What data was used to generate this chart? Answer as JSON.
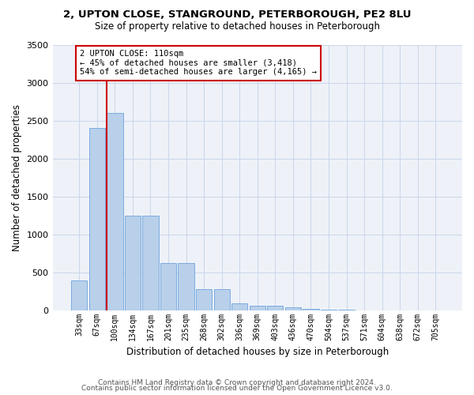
{
  "title1": "2, UPTON CLOSE, STANGROUND, PETERBOROUGH, PE2 8LU",
  "title2": "Size of property relative to detached houses in Peterborough",
  "xlabel": "Distribution of detached houses by size in Peterborough",
  "ylabel": "Number of detached properties",
  "bin_labels": [
    "33sqm",
    "67sqm",
    "100sqm",
    "134sqm",
    "167sqm",
    "201sqm",
    "235sqm",
    "268sqm",
    "302sqm",
    "336sqm",
    "369sqm",
    "403sqm",
    "436sqm",
    "470sqm",
    "504sqm",
    "537sqm",
    "571sqm",
    "604sqm",
    "638sqm",
    "672sqm",
    "705sqm"
  ],
  "bar_values": [
    400,
    2400,
    2600,
    1250,
    1250,
    630,
    630,
    280,
    280,
    100,
    60,
    60,
    40,
    20,
    10,
    10,
    5,
    0,
    0,
    0,
    0
  ],
  "bar_color": "#b8d0ea",
  "bar_edge_color": "#7aabe0",
  "grid_color": "#cdd8ec",
  "background_color": "#eef2f8",
  "vline_color": "#cc0000",
  "annotation_text": "2 UPTON CLOSE: 110sqm\n← 45% of detached houses are smaller (3,418)\n54% of semi-detached houses are larger (4,165) →",
  "annotation_box_color": "#ffffff",
  "annotation_box_edge": "#cc0000",
  "ylim_max": 3500,
  "yticks": [
    0,
    500,
    1000,
    1500,
    2000,
    2500,
    3000,
    3500
  ],
  "footer1": "Contains HM Land Registry data © Crown copyright and database right 2024.",
  "footer2": "Contains public sector information licensed under the Open Government Licence v3.0."
}
